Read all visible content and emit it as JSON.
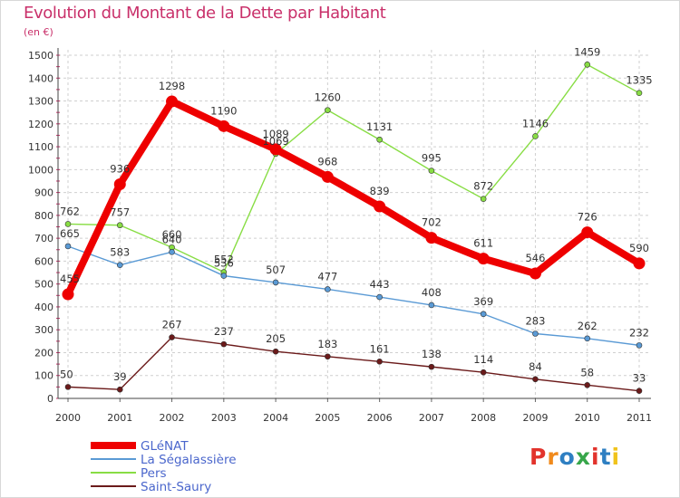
{
  "title": "Evolution du Montant de la Dette par Habitant",
  "subtitle": "(en €)",
  "logo": {
    "text": "Proxiti",
    "colors": [
      "#e2332c",
      "#f08a1c",
      "#2e7fc2",
      "#37a64a",
      "#e2332c",
      "#2e7fc2",
      "#f0c31c"
    ]
  },
  "chart_data": {
    "type": "line",
    "title": "Evolution du Montant de la Dette par Habitant",
    "subtitle": "(en €)",
    "x": [
      "2000",
      "2001",
      "2002",
      "2003",
      "2004",
      "2005",
      "2006",
      "2007",
      "2008",
      "2009",
      "2010",
      "2011"
    ],
    "ylim": [
      0,
      1500
    ],
    "yticks": [
      0,
      100,
      200,
      300,
      400,
      500,
      600,
      700,
      800,
      900,
      1000,
      1100,
      1200,
      1300,
      1400,
      1500
    ],
    "grid": "dashed",
    "legend_position": "bottom-left",
    "series": [
      {
        "name": "GLéNAT",
        "color": "#ee0000",
        "values": [
          455,
          936,
          1298,
          1190,
          1089,
          968,
          839,
          702,
          611,
          546,
          726,
          590
        ]
      },
      {
        "name": "La Ségalassière",
        "color": "#5a9ad5",
        "values": [
          665,
          583,
          640,
          536,
          507,
          477,
          443,
          408,
          369,
          283,
          262,
          232
        ]
      },
      {
        "name": "Pers",
        "color": "#88dd44",
        "values": [
          762,
          757,
          660,
          552,
          1069,
          1260,
          1131,
          995,
          872,
          1146,
          1459,
          1335
        ]
      },
      {
        "name": "Saint-Saury",
        "color": "#6b1a1a",
        "values": [
          50,
          39,
          267,
          237,
          205,
          183,
          161,
          138,
          114,
          84,
          58,
          33
        ]
      }
    ]
  }
}
